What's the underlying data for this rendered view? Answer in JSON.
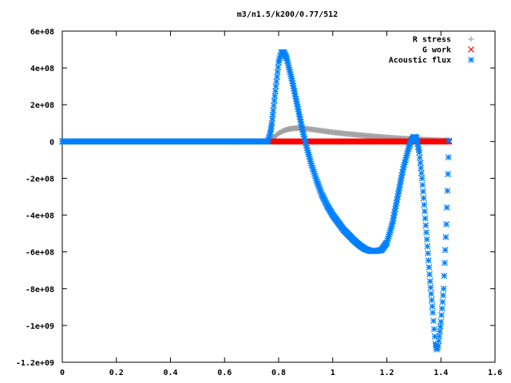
{
  "chart_data": {
    "type": "scatter",
    "title": "m3/n1.5/k200/0.77/512",
    "xlabel": "",
    "ylabel": "",
    "xlim": [
      0,
      1.6
    ],
    "ylim": [
      -1200000000.0,
      600000000.0
    ],
    "x_ticks": [
      {
        "value": 0,
        "label": "0"
      },
      {
        "value": 0.2,
        "label": "0.2"
      },
      {
        "value": 0.4,
        "label": "0.4"
      },
      {
        "value": 0.6,
        "label": "0.6"
      },
      {
        "value": 0.8,
        "label": "0.8"
      },
      {
        "value": 1.0,
        "label": "1"
      },
      {
        "value": 1.2,
        "label": "1.2"
      },
      {
        "value": 1.4,
        "label": "1.4"
      },
      {
        "value": 1.6,
        "label": "1.6"
      }
    ],
    "y_ticks": [
      {
        "value": 600000000.0,
        "label": "6e+08"
      },
      {
        "value": 400000000.0,
        "label": "4e+08"
      },
      {
        "value": 200000000.0,
        "label": "2e+08"
      },
      {
        "value": 0,
        "label": "0"
      },
      {
        "value": -200000000.0,
        "label": "-2e+08"
      },
      {
        "value": -400000000.0,
        "label": "-4e+08"
      },
      {
        "value": -600000000.0,
        "label": "-6e+08"
      },
      {
        "value": -800000000.0,
        "label": "-8e+08"
      },
      {
        "value": -1000000000.0,
        "label": "-1e+09"
      },
      {
        "value": -1200000000.0,
        "label": "-1.2e+09"
      }
    ],
    "grid": false,
    "legend_position": "top-right",
    "series": [
      {
        "name": "R stress",
        "marker": "plus",
        "color": "#a0a0a0",
        "x": [
          0,
          0.77,
          0.78,
          0.8,
          0.82,
          0.84,
          0.86,
          0.88,
          0.9,
          0.95,
          1.0,
          1.05,
          1.1,
          1.15,
          1.2,
          1.25,
          1.3,
          1.35,
          1.4,
          1.43
        ],
        "y": [
          0,
          0,
          20000000.0,
          45000000.0,
          60000000.0,
          68000000.0,
          72000000.0,
          73000000.0,
          70000000.0,
          60000000.0,
          50000000.0,
          42000000.0,
          35000000.0,
          28000000.0,
          22000000.0,
          17000000.0,
          13000000.0,
          9000000.0,
          6000000.0,
          5000000.0
        ]
      },
      {
        "name": "G work",
        "marker": "cross",
        "color": "#ff0000",
        "x": [
          0.77,
          0.8,
          0.85,
          0.9,
          0.95,
          1.0,
          1.05,
          1.1,
          1.15,
          1.2,
          1.25,
          1.3,
          1.35,
          1.4,
          1.43
        ],
        "y": [
          0,
          0,
          0,
          0,
          0,
          0,
          0,
          0,
          0,
          0,
          0,
          0,
          0,
          0,
          0
        ]
      },
      {
        "name": "Acoustic flux",
        "marker": "star",
        "color": "#0080ff",
        "x": [
          0,
          0.76,
          0.77,
          0.775,
          0.78,
          0.79,
          0.8,
          0.81,
          0.82,
          0.83,
          0.84,
          0.85,
          0.86,
          0.87,
          0.88,
          0.89,
          0.9,
          0.92,
          0.94,
          0.96,
          0.98,
          1.0,
          1.02,
          1.04,
          1.06,
          1.08,
          1.1,
          1.12,
          1.14,
          1.16,
          1.18,
          1.2,
          1.22,
          1.24,
          1.26,
          1.28,
          1.29,
          1.3,
          1.31,
          1.32,
          1.33,
          1.34,
          1.35,
          1.36,
          1.37,
          1.375,
          1.38,
          1.385,
          1.39,
          1.4,
          1.41,
          1.42,
          1.43
        ],
        "y": [
          0,
          0,
          50000000.0,
          100000000.0,
          170000000.0,
          300000000.0,
          430000000.0,
          485000000.0,
          485000000.0,
          450000000.0,
          390000000.0,
          330000000.0,
          260000000.0,
          190000000.0,
          120000000.0,
          50000000.0,
          -10000000.0,
          -120000000.0,
          -210000000.0,
          -290000000.0,
          -350000000.0,
          -400000000.0,
          -440000000.0,
          -480000000.0,
          -510000000.0,
          -540000000.0,
          -565000000.0,
          -585000000.0,
          -595000000.0,
          -595000000.0,
          -590000000.0,
          -550000000.0,
          -450000000.0,
          -300000000.0,
          -150000000.0,
          -40000000.0,
          5000000.0,
          25000000.0,
          20000000.0,
          -60000000.0,
          -200000000.0,
          -380000000.0,
          -570000000.0,
          -760000000.0,
          -930000000.0,
          -1020000000.0,
          -1100000000.0,
          -1130000000.0,
          -1110000000.0,
          -980000000.0,
          -800000000.0,
          -450000000.0,
          5000000.0
        ]
      }
    ]
  }
}
